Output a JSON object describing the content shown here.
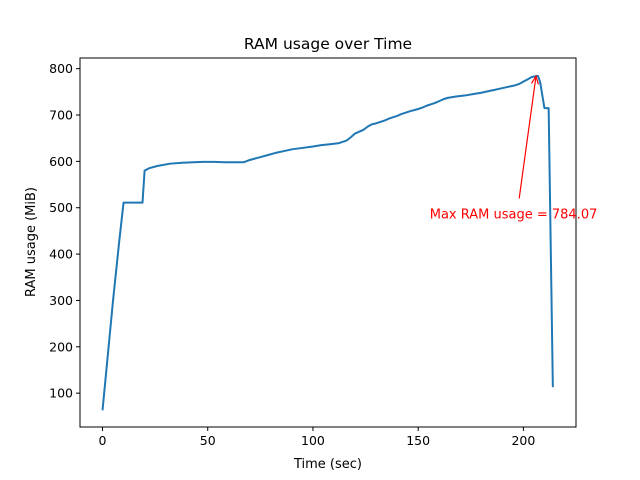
{
  "chart_data": {
    "type": "line",
    "title": "RAM usage over Time",
    "xlabel": "Time (sec)",
    "ylabel": "RAM usage (MiB)",
    "xlim": [
      -10.7,
      225
    ],
    "ylim": [
      27,
      823
    ],
    "xticks": [
      0,
      50,
      100,
      150,
      200
    ],
    "yticks": [
      100,
      200,
      300,
      400,
      500,
      600,
      700,
      800
    ],
    "grid": false,
    "line_color": "#1f77b4",
    "series": [
      {
        "x": [
          0,
          5,
          8,
          10,
          12,
          19,
          20,
          22,
          26,
          32,
          38,
          43,
          48,
          53,
          58,
          63,
          67,
          70,
          74,
          78,
          82,
          86,
          90,
          95,
          100,
          104,
          108,
          112,
          116,
          118,
          120,
          124,
          126,
          128,
          130,
          132,
          134,
          136,
          140,
          142,
          146,
          150,
          152,
          154,
          158,
          160,
          162,
          164,
          168,
          170,
          172,
          176,
          180,
          184,
          186,
          188,
          192,
          196,
          198,
          200,
          202,
          204,
          206,
          207,
          208,
          210,
          212,
          214
        ],
        "y": [
          63,
          300,
          430,
          511,
          511,
          511,
          580,
          585,
          590,
          595,
          597,
          598,
          599,
          599,
          598,
          598,
          598,
          603,
          608,
          613,
          618,
          622,
          626,
          629,
          632,
          635,
          637,
          639,
          645,
          652,
          660,
          668,
          675,
          680,
          682,
          685,
          688,
          692,
          698,
          702,
          708,
          713,
          716,
          720,
          726,
          730,
          734,
          737,
          740,
          741,
          742,
          745,
          748,
          752,
          754,
          756,
          760,
          764,
          767,
          772,
          777,
          782,
          784.07,
          784,
          770,
          715,
          715,
          113
        ]
      }
    ],
    "annotation": {
      "text": "Max RAM usage = 784.07",
      "color": "#ff0000",
      "x": 206,
      "y": 784.07,
      "text_x": 155.5,
      "text_y": 487
    }
  }
}
